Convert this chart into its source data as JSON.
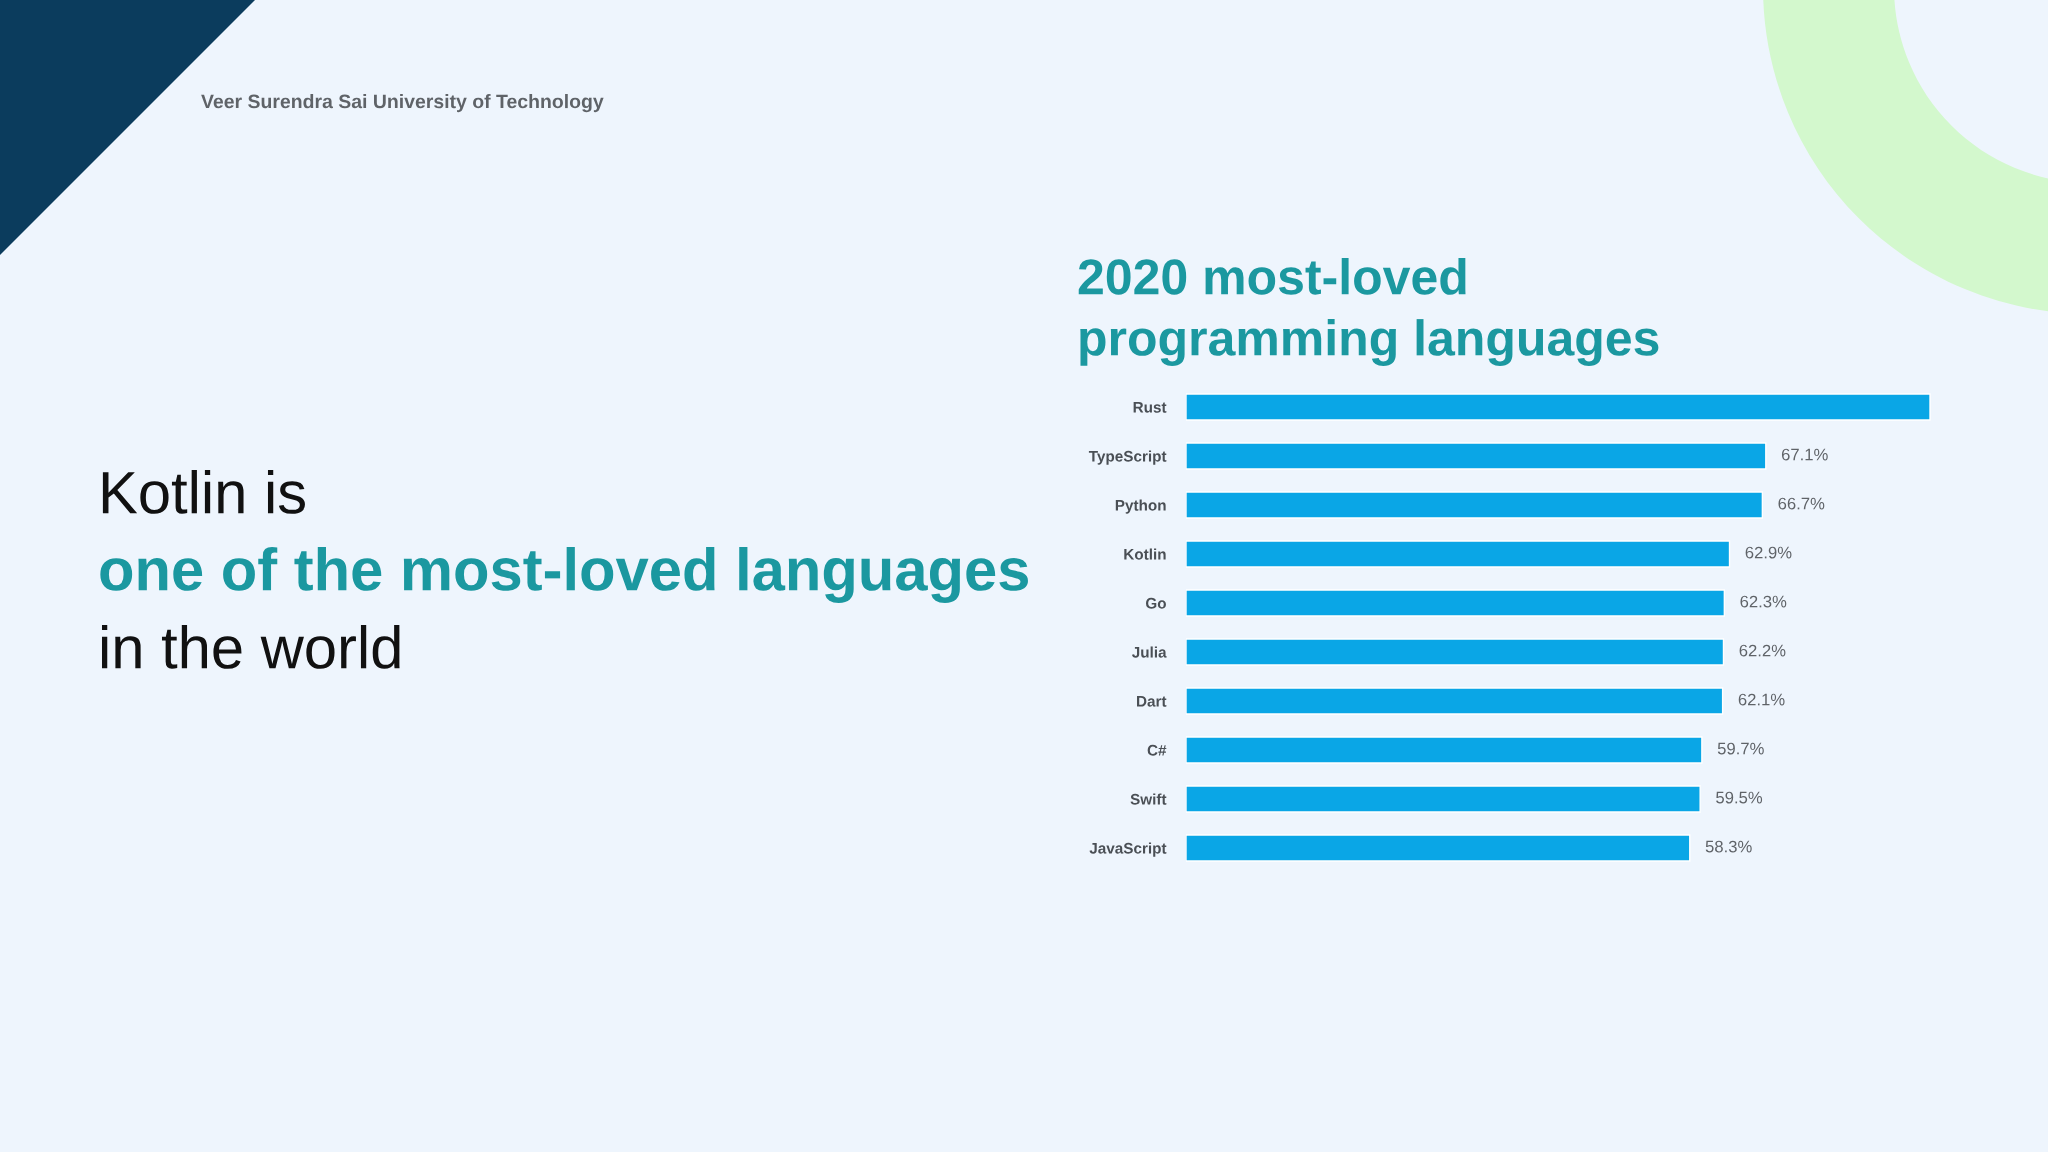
{
  "chart_data": {
    "type": "bar",
    "orientation": "horizontal",
    "title": "2020 most-loved\nprogramming languages",
    "categories": [
      "Rust",
      "TypeScript",
      "Python",
      "Kotlin",
      "Go",
      "Julia",
      "Dart",
      "C#",
      "Swift",
      "JavaScript"
    ],
    "values": [
      86.1,
      67.1,
      66.7,
      62.9,
      62.3,
      62.2,
      62.1,
      59.7,
      59.5,
      58.3
    ],
    "value_labels": [
      null,
      "67.1%",
      "66.7%",
      "62.9%",
      "62.3%",
      "62.2%",
      "62.1%",
      "59.7%",
      "59.5%",
      "58.3%"
    ],
    "color": "#0aa6e6",
    "tick_labels": "y",
    "grid": false,
    "annotations": [
      "Veer Surendra Sai University of Technology",
      "Kotlin is",
      "one of the most-loved languages",
      "in the world"
    ]
  }
}
